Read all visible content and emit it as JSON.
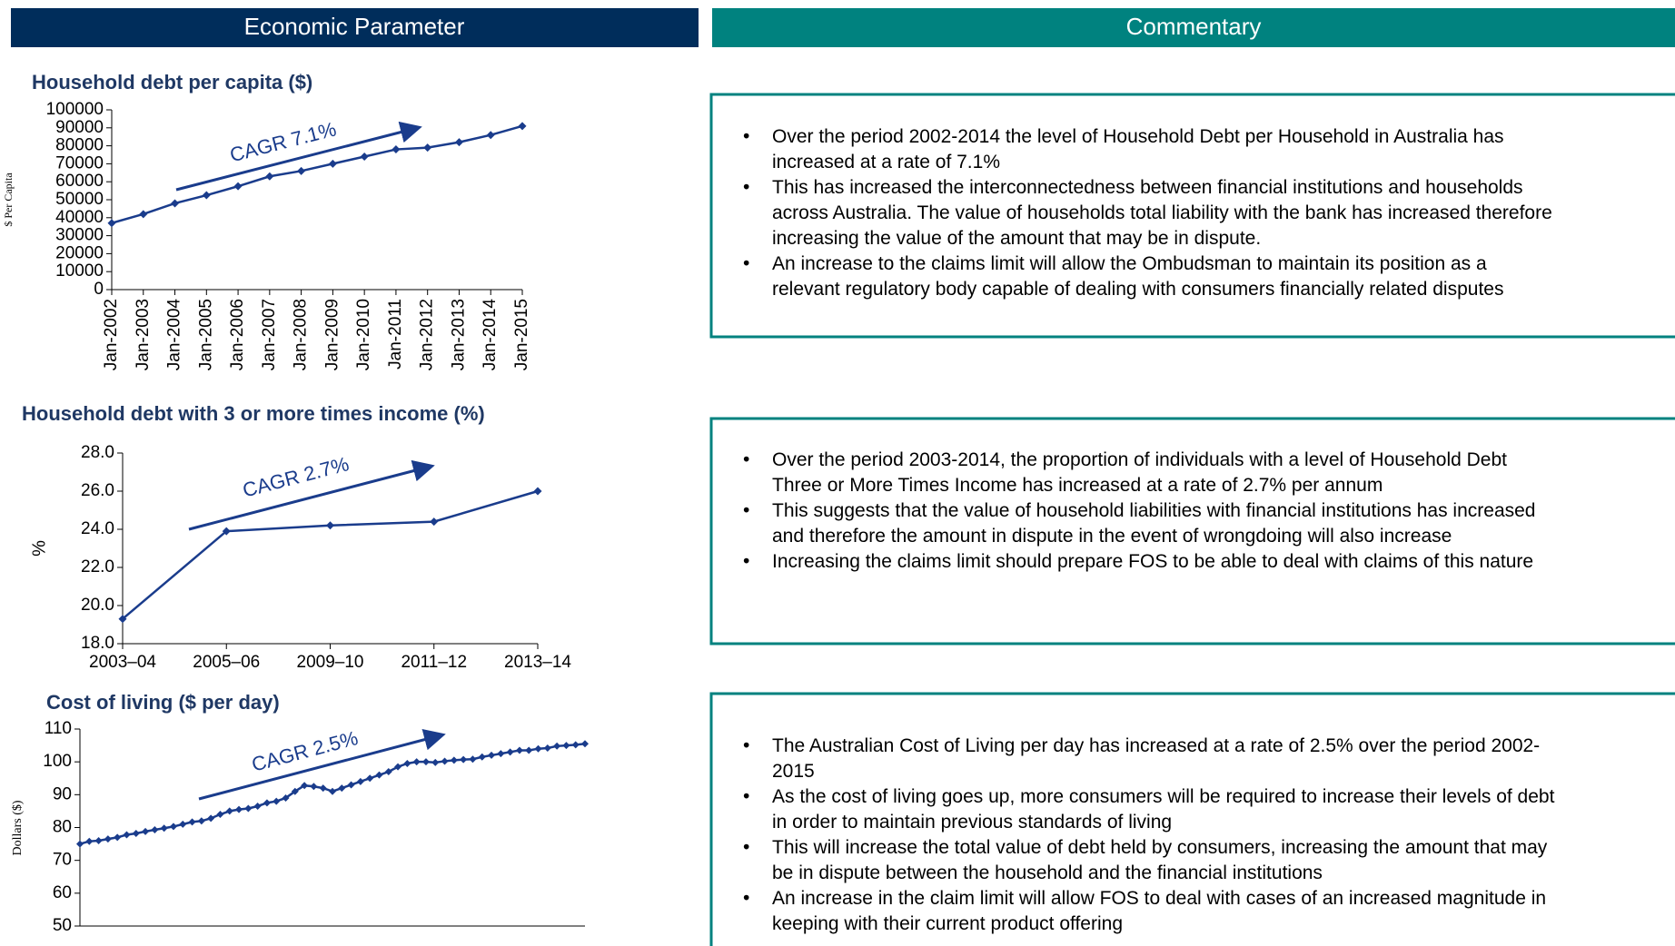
{
  "header": {
    "left": "Economic Parameter",
    "right": "Commentary"
  },
  "chart_data": [
    {
      "type": "line",
      "title": "Household debt per capita ($)",
      "y_label": "$ Per Capita",
      "annotation": "CAGR 7.1%",
      "categories": [
        "Jan-2002",
        "Jan-2003",
        "Jan-2004",
        "Jan-2005",
        "Jan-2006",
        "Jan-2007",
        "Jan-2008",
        "Jan-2009",
        "Jan-2010",
        "Jan-2011",
        "Jan-2012",
        "Jan-2013",
        "Jan-2014",
        "Jan-2015"
      ],
      "values": [
        37000,
        42000,
        48000,
        52500,
        57500,
        63000,
        66000,
        70000,
        74000,
        78000,
        79000,
        82000,
        86000,
        91000
      ],
      "color": "#1a3c8c",
      "ylim": [
        0,
        100000
      ],
      "yticks": [
        0,
        10000,
        20000,
        30000,
        40000,
        50000,
        60000,
        70000,
        80000,
        90000,
        100000
      ]
    },
    {
      "type": "line",
      "title": "Household debt with 3 or more times income (%)",
      "y_label": "%",
      "annotation": "CAGR 2.7%",
      "categories": [
        "2003–04",
        "2005–06",
        "2009–10",
        "2011–12",
        "2013–14"
      ],
      "values": [
        19.3,
        23.9,
        24.2,
        24.4,
        26.0
      ],
      "color": "#1a3c8c",
      "ylim": [
        18,
        28
      ],
      "yticks": [
        {
          "value": 18,
          "label": "18.0"
        },
        {
          "value": 20,
          "label": "20.0"
        },
        {
          "value": 22,
          "label": "22.0"
        },
        {
          "value": 24,
          "label": "24.0"
        },
        {
          "value": 26,
          "label": "26.0"
        },
        {
          "value": 28,
          "label": "28.0"
        }
      ]
    },
    {
      "type": "line",
      "title": "Cost of living ($ per day)",
      "y_label": "Dollars ($)",
      "annotation": "CAGR 2.5%",
      "values": [
        75,
        75.8,
        76,
        76.5,
        77,
        77.8,
        78.2,
        78.8,
        79.3,
        79.8,
        80.3,
        81,
        81.7,
        82,
        82.8,
        84,
        85,
        85.5,
        85.8,
        86.5,
        87.5,
        88,
        89,
        91,
        92.8,
        92.5,
        92,
        91,
        92,
        93,
        94,
        95,
        96,
        97,
        98.5,
        99.5,
        100,
        100,
        99.8,
        100.2,
        100.5,
        100.7,
        100.8,
        101.5,
        102,
        102.5,
        103,
        103.5,
        103.5,
        104,
        104.2,
        104.8,
        105,
        105.2,
        105.5
      ],
      "color": "#1a3c8c",
      "ylim": [
        50,
        110
      ],
      "yticks": [
        50,
        60,
        70,
        80,
        90,
        100,
        110
      ]
    }
  ],
  "commentary": [
    {
      "bullets": [
        "Over the period 2002-2014 the level of Household Debt per Household in Australia has|increased at a rate of 7.1%",
        "This has increased the interconnectedness between financial institutions and households|across Australia. The value of households total liability with the bank has increased therefore|increasing the value of the amount that may be in dispute.",
        "An increase to the claims limit will allow the Ombudsman to maintain its position as a|relevant regulatory body capable of dealing with consumers financially related disputes"
      ]
    },
    {
      "bullets": [
        "Over the period 2003-2014, the proportion of individuals with a level of Household Debt|Three or More Times Income has increased at a rate of 2.7% per annum",
        "This suggests that the value of household liabilities with financial institutions has increased|and therefore the amount in dispute in the event of wrongdoing will also increase",
        "Increasing the claims limit should prepare FOS to be able to deal with claims of this nature"
      ]
    },
    {
      "bullets": [
        "The Australian Cost of Living per day has increased at a rate of 2.5% over the period 2002-|2015",
        "As the cost of living goes up, more consumers will be required to increase their levels of debt|in order to maintain previous standards of living",
        "This will increase the total value of debt held by consumers, increasing the amount that may|be in dispute between the household and the financial institutions",
        "An increase in the claim limit will allow FOS to deal with cases of an increased magnitude in|keeping with their current product offering"
      ]
    }
  ]
}
